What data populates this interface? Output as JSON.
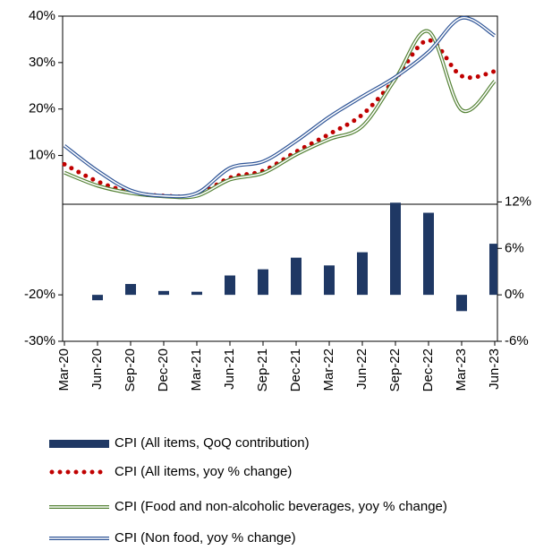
{
  "chart_data": {
    "type": "combo",
    "categories": [
      "Mar-20",
      "Jun-20",
      "Sep-20",
      "Dec-20",
      "Mar-21",
      "Jun-21",
      "Sep-21",
      "Dec-21",
      "Mar-22",
      "Jun-22",
      "Sep-22",
      "Dec-22",
      "Mar-23",
      "Jun-23"
    ],
    "ylim": [
      -30,
      40
    ],
    "yticks": [
      {
        "value": -30,
        "label": "-30%"
      },
      {
        "value": -20,
        "label": "-20%"
      },
      {
        "value": 10,
        "label": "10%"
      },
      {
        "value": 20,
        "label": "20%"
      },
      {
        "value": 30,
        "label": "30%"
      },
      {
        "value": 40,
        "label": "40%"
      }
    ],
    "y2lim": [
      -6,
      36
    ],
    "y2ticks": [
      {
        "value": -6,
        "label": "-6%"
      },
      {
        "value": 0,
        "label": "0%"
      },
      {
        "value": 6,
        "label": "6%"
      },
      {
        "value": 12,
        "label": "12%"
      }
    ],
    "series": [
      {
        "name": "CPI (All items, QoQ contribution)",
        "type": "bar",
        "axis": "y2",
        "color": "#1f3864",
        "values": [
          null,
          -0.7,
          1.4,
          0.5,
          0.4,
          2.5,
          3.3,
          4.8,
          3.8,
          5.5,
          11.9,
          10.6,
          -2.1,
          6.6
        ]
      },
      {
        "name": "CPI (All items, yoy % change)",
        "type": "line",
        "style": "dotted",
        "color": "#c00000",
        "values": [
          8.1,
          4.4,
          2.1,
          1.3,
          1.5,
          5.2,
          6.7,
          10.8,
          14.6,
          18.8,
          26.5,
          34.8,
          27.1,
          28.1
        ]
      },
      {
        "name": "CPI (Food and non-alcoholic beverages, yoy % change)",
        "type": "line",
        "style": "double",
        "color": "#548235",
        "values": [
          6.3,
          3.5,
          1.9,
          1.2,
          1.3,
          4.8,
          6.2,
          10.2,
          13.5,
          16.3,
          26.5,
          36.7,
          19.8,
          26.0
        ]
      },
      {
        "name": "CPI (Non food, yoy % change)",
        "type": "line",
        "style": "double",
        "color": "#2f5597",
        "values": [
          12.1,
          6.7,
          2.5,
          1.3,
          1.9,
          7.3,
          8.7,
          13.1,
          18.3,
          22.7,
          26.9,
          32.3,
          39.6,
          35.8
        ]
      }
    ]
  }
}
